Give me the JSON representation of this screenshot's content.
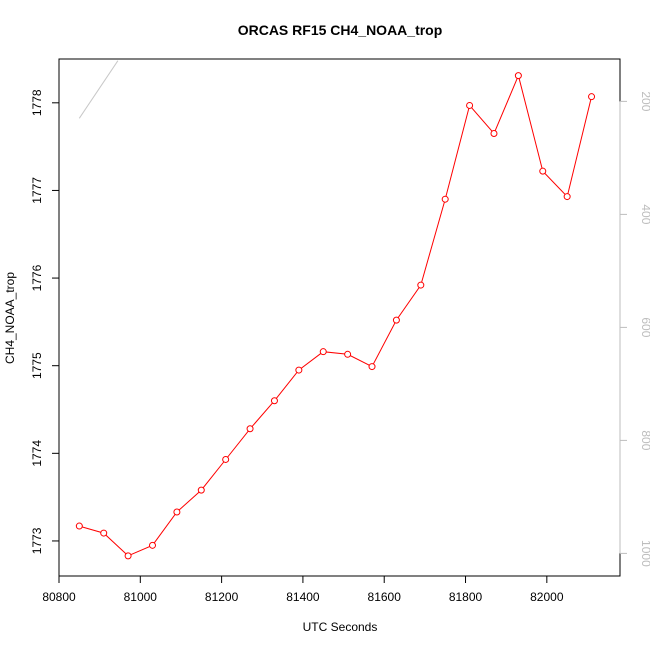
{
  "chart_data": {
    "type": "line",
    "title": "ORCAS RF15 CH4_NOAA_trop",
    "xlabel": "UTC Seconds",
    "ylabel": "CH4_NOAA_trop",
    "xlim": [
      80800,
      82180
    ],
    "ylim": [
      1772.6,
      1778.5
    ],
    "x_ticks": [
      80800,
      81000,
      81200,
      81400,
      81600,
      81800,
      82000
    ],
    "y_ticks": [
      1773,
      1774,
      1775,
      1776,
      1777,
      1778
    ],
    "right_axis": {
      "ticks": [
        200,
        400,
        600,
        800,
        1000
      ],
      "lim": [
        125,
        1040
      ],
      "reversed": true,
      "color": "#bdbdbd"
    },
    "series": [
      {
        "color": "#ff0000",
        "marker": "open-circle",
        "x": [
          80850,
          80910,
          80970,
          81030,
          81090,
          81150,
          81210,
          81270,
          81330,
          81390,
          81450,
          81510,
          81570,
          81630,
          81690,
          81750,
          81810,
          81870,
          81930,
          81990,
          82050,
          82110
        ],
        "y": [
          1773.17,
          1773.09,
          1772.83,
          1772.95,
          1773.33,
          1773.58,
          1773.93,
          1774.28,
          1774.6,
          1774.95,
          1775.16,
          1775.13,
          1774.99,
          1775.52,
          1775.92,
          1776.9,
          1777.97,
          1777.65,
          1778.31,
          1777.22,
          1776.93,
          1778.07
        ]
      },
      {
        "color": "#c8c8c8",
        "marker": "none",
        "axis": "right",
        "x": [
          80850,
          80945
        ],
        "y": [
          230,
          128
        ]
      }
    ],
    "grid": false,
    "legend": "none"
  }
}
